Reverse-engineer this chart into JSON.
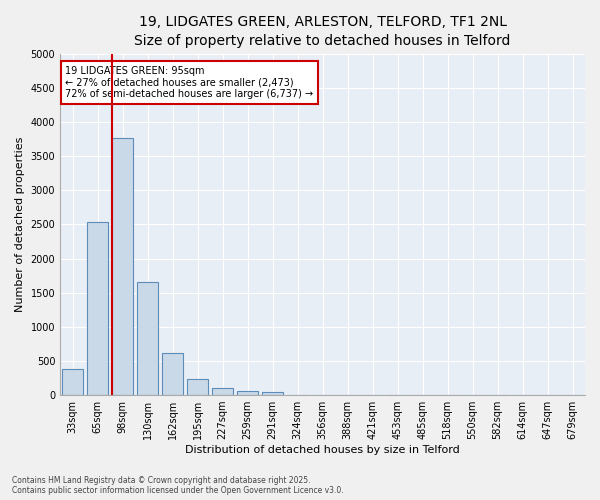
{
  "title_line1": "19, LIDGATES GREEN, ARLESTON, TELFORD, TF1 2NL",
  "title_line2": "Size of property relative to detached houses in Telford",
  "xlabel": "Distribution of detached houses by size in Telford",
  "ylabel": "Number of detached properties",
  "categories": [
    "33sqm",
    "65sqm",
    "98sqm",
    "130sqm",
    "162sqm",
    "195sqm",
    "227sqm",
    "259sqm",
    "291sqm",
    "324sqm",
    "356sqm",
    "388sqm",
    "421sqm",
    "453sqm",
    "485sqm",
    "518sqm",
    "550sqm",
    "582sqm",
    "614sqm",
    "647sqm",
    "679sqm"
  ],
  "values": [
    380,
    2540,
    3760,
    1660,
    620,
    230,
    105,
    55,
    50,
    0,
    0,
    0,
    0,
    0,
    0,
    0,
    0,
    0,
    0,
    0,
    0
  ],
  "bar_color": "#c9d9e8",
  "bar_edge_color": "#5b8db8",
  "bar_edge_width": 0.8,
  "vline_color": "#cc0000",
  "vline_linewidth": 1.5,
  "annotation_text": "19 LIDGATES GREEN: 95sqm\n← 27% of detached houses are smaller (2,473)\n72% of semi-detached houses are larger (6,737) →",
  "annotation_box_color": "#ffffff",
  "annotation_box_edge": "#cc0000",
  "ylim": [
    0,
    5000
  ],
  "yticks": [
    0,
    500,
    1000,
    1500,
    2000,
    2500,
    3000,
    3500,
    4000,
    4500,
    5000
  ],
  "bg_color": "#e8eef5",
  "footer_line1": "Contains HM Land Registry data © Crown copyright and database right 2025.",
  "footer_line2": "Contains public sector information licensed under the Open Government Licence v3.0.",
  "grid_color": "#ffffff",
  "title_fontsize": 10,
  "subtitle_fontsize": 9,
  "tick_fontsize": 7,
  "axis_label_fontsize": 8,
  "annotation_fontsize": 7,
  "footer_fontsize": 5.5
}
